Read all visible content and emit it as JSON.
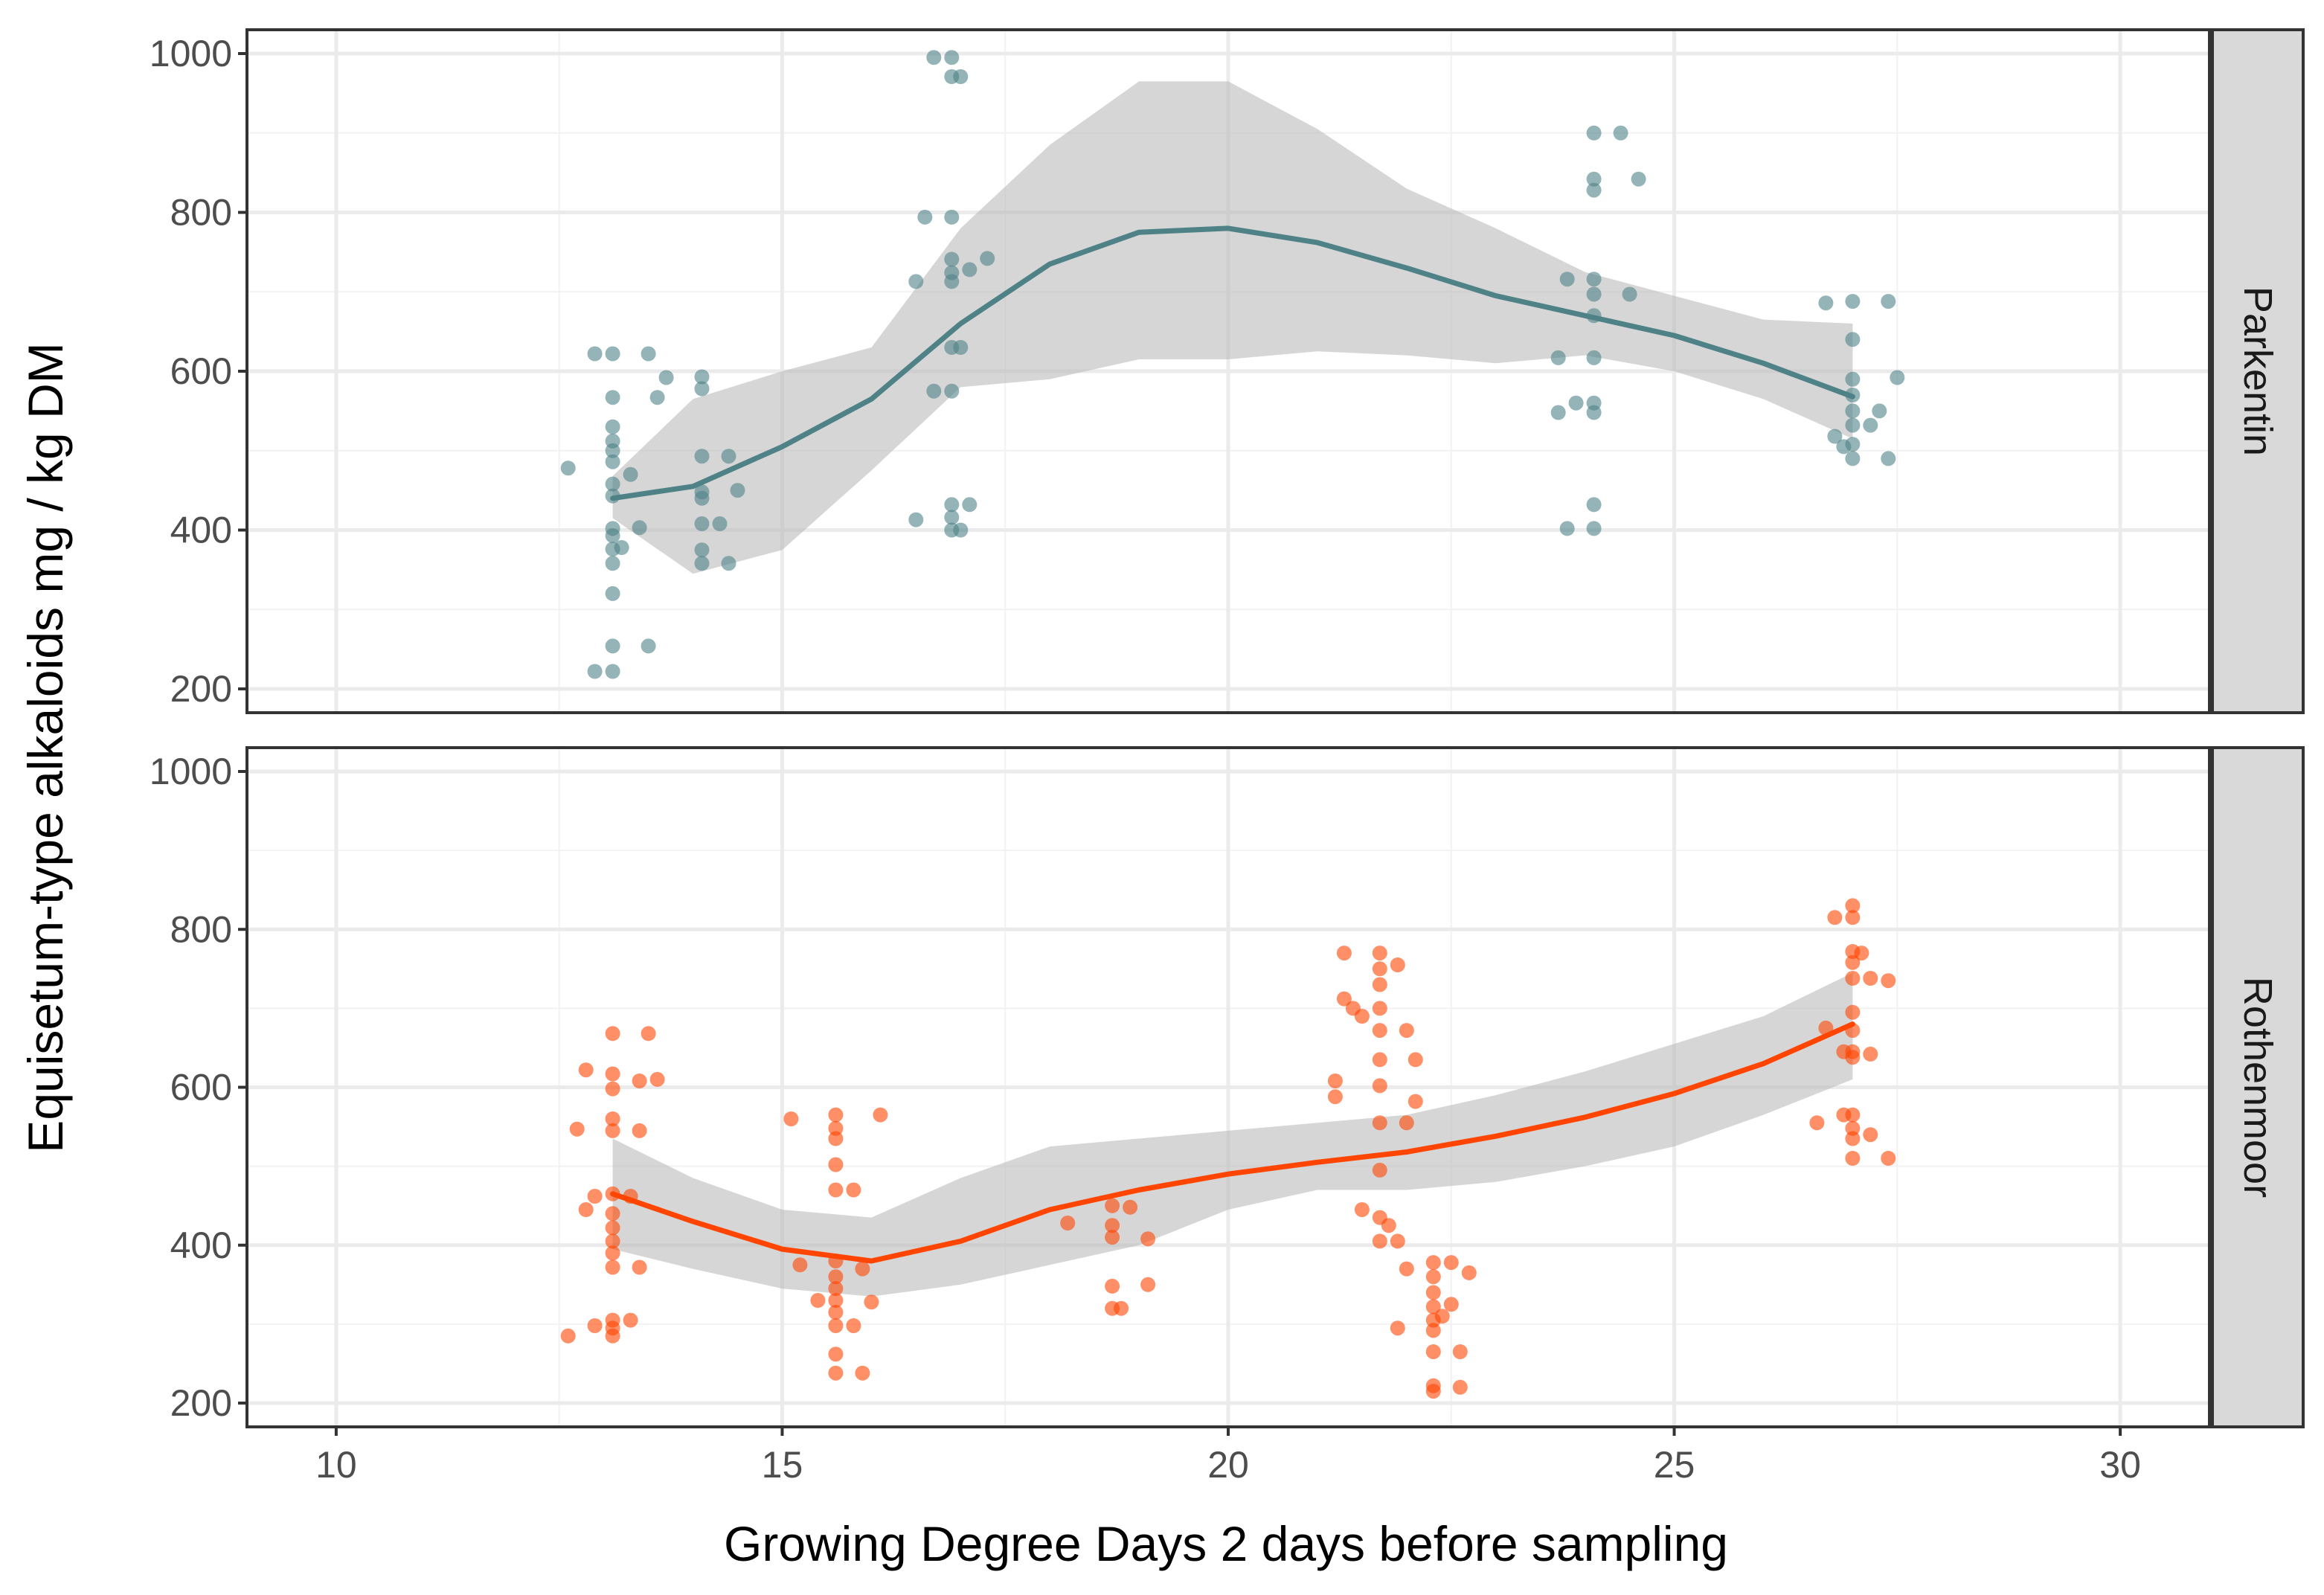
{
  "chart_data": {
    "type": "scatter",
    "xlabel": "Growing Degree Days 2 days before sampling",
    "ylabel": "Equisetum-type alkaloids mg / kg DM",
    "xlim": [
      9,
      31
    ],
    "ylim": [
      200,
      1000
    ],
    "x_ticks": [
      10,
      15,
      20,
      25,
      30
    ],
    "y_ticks": [
      200,
      400,
      600,
      800,
      1000
    ],
    "grid": true,
    "facets": [
      {
        "label": "Parkentin",
        "color": "#4e8287",
        "points": [
          {
            "x": 13.1,
            "y": 622
          },
          {
            "x": 13.1,
            "y": 567
          },
          {
            "x": 13.1,
            "y": 530
          },
          {
            "x": 13.1,
            "y": 512
          },
          {
            "x": 13.1,
            "y": 500
          },
          {
            "x": 13.1,
            "y": 486
          },
          {
            "x": 13.1,
            "y": 458
          },
          {
            "x": 13.1,
            "y": 443
          },
          {
            "x": 13.1,
            "y": 402
          },
          {
            "x": 13.1,
            "y": 393
          },
          {
            "x": 13.1,
            "y": 376
          },
          {
            "x": 13.1,
            "y": 358
          },
          {
            "x": 13.1,
            "y": 320
          },
          {
            "x": 13.1,
            "y": 254
          },
          {
            "x": 13.1,
            "y": 222
          },
          {
            "x": 12.9,
            "y": 622
          },
          {
            "x": 12.6,
            "y": 478
          },
          {
            "x": 12.9,
            "y": 222
          },
          {
            "x": 13.3,
            "y": 470
          },
          {
            "x": 13.4,
            "y": 403
          },
          {
            "x": 13.5,
            "y": 622
          },
          {
            "x": 13.5,
            "y": 254
          },
          {
            "x": 13.2,
            "y": 378
          },
          {
            "x": 13.6,
            "y": 567
          },
          {
            "x": 13.7,
            "y": 592
          },
          {
            "x": 14.1,
            "y": 593
          },
          {
            "x": 14.1,
            "y": 578
          },
          {
            "x": 14.1,
            "y": 493
          },
          {
            "x": 14.1,
            "y": 448
          },
          {
            "x": 14.1,
            "y": 440
          },
          {
            "x": 14.1,
            "y": 408
          },
          {
            "x": 14.1,
            "y": 375
          },
          {
            "x": 14.1,
            "y": 358
          },
          {
            "x": 14.4,
            "y": 493
          },
          {
            "x": 14.5,
            "y": 450
          },
          {
            "x": 14.3,
            "y": 408
          },
          {
            "x": 14.4,
            "y": 358
          },
          {
            "x": 16.9,
            "y": 995
          },
          {
            "x": 16.9,
            "y": 971
          },
          {
            "x": 16.7,
            "y": 995
          },
          {
            "x": 17.0,
            "y": 971
          },
          {
            "x": 16.9,
            "y": 794
          },
          {
            "x": 16.6,
            "y": 794
          },
          {
            "x": 16.9,
            "y": 741
          },
          {
            "x": 16.9,
            "y": 724
          },
          {
            "x": 16.9,
            "y": 713
          },
          {
            "x": 16.5,
            "y": 713
          },
          {
            "x": 17.1,
            "y": 728
          },
          {
            "x": 17.3,
            "y": 742
          },
          {
            "x": 16.9,
            "y": 630
          },
          {
            "x": 17.0,
            "y": 630
          },
          {
            "x": 16.9,
            "y": 575
          },
          {
            "x": 16.7,
            "y": 575
          },
          {
            "x": 16.9,
            "y": 432
          },
          {
            "x": 17.1,
            "y": 432
          },
          {
            "x": 16.9,
            "y": 416
          },
          {
            "x": 16.9,
            "y": 400
          },
          {
            "x": 16.5,
            "y": 413
          },
          {
            "x": 17.0,
            "y": 400
          },
          {
            "x": 24.1,
            "y": 900
          },
          {
            "x": 24.1,
            "y": 842
          },
          {
            "x": 24.1,
            "y": 828
          },
          {
            "x": 24.4,
            "y": 900
          },
          {
            "x": 24.6,
            "y": 842
          },
          {
            "x": 24.1,
            "y": 716
          },
          {
            "x": 24.1,
            "y": 697
          },
          {
            "x": 24.1,
            "y": 670
          },
          {
            "x": 23.8,
            "y": 716
          },
          {
            "x": 24.5,
            "y": 697
          },
          {
            "x": 24.1,
            "y": 617
          },
          {
            "x": 23.7,
            "y": 617
          },
          {
            "x": 24.1,
            "y": 560
          },
          {
            "x": 24.1,
            "y": 548
          },
          {
            "x": 23.9,
            "y": 560
          },
          {
            "x": 23.7,
            "y": 548
          },
          {
            "x": 24.1,
            "y": 432
          },
          {
            "x": 24.1,
            "y": 402
          },
          {
            "x": 23.8,
            "y": 402
          },
          {
            "x": 27.0,
            "y": 688
          },
          {
            "x": 27.0,
            "y": 640
          },
          {
            "x": 27.0,
            "y": 590
          },
          {
            "x": 27.0,
            "y": 570
          },
          {
            "x": 27.0,
            "y": 550
          },
          {
            "x": 27.0,
            "y": 532
          },
          {
            "x": 27.0,
            "y": 508
          },
          {
            "x": 27.0,
            "y": 490
          },
          {
            "x": 26.7,
            "y": 686
          },
          {
            "x": 27.4,
            "y": 688
          },
          {
            "x": 27.5,
            "y": 592
          },
          {
            "x": 27.3,
            "y": 550
          },
          {
            "x": 27.2,
            "y": 532
          },
          {
            "x": 26.8,
            "y": 518
          },
          {
            "x": 27.4,
            "y": 490
          },
          {
            "x": 26.9,
            "y": 505
          }
        ],
        "smooth": {
          "x": [
            13.1,
            14.0,
            15.0,
            16.0,
            17.0,
            18.0,
            19.0,
            20.0,
            21.0,
            22.0,
            23.0,
            24.0,
            25.0,
            26.0,
            27.0
          ],
          "y": [
            440,
            455,
            505,
            565,
            660,
            735,
            775,
            780,
            762,
            730,
            695,
            670,
            645,
            610,
            568
          ],
          "lower": [
            415,
            345,
            375,
            475,
            580,
            590,
            615,
            615,
            625,
            620,
            610,
            620,
            600,
            565,
            515
          ],
          "upper": [
            468,
            565,
            600,
            630,
            780,
            885,
            965,
            965,
            905,
            830,
            780,
            725,
            695,
            665,
            660
          ]
        }
      },
      {
        "label": "Rothenmoor",
        "color": "#ff4500",
        "points": [
          {
            "x": 13.1,
            "y": 668
          },
          {
            "x": 13.1,
            "y": 617
          },
          {
            "x": 13.1,
            "y": 598
          },
          {
            "x": 13.1,
            "y": 560
          },
          {
            "x": 13.1,
            "y": 545
          },
          {
            "x": 13.1,
            "y": 465
          },
          {
            "x": 13.1,
            "y": 440
          },
          {
            "x": 13.1,
            "y": 422
          },
          {
            "x": 13.1,
            "y": 405
          },
          {
            "x": 13.1,
            "y": 390
          },
          {
            "x": 13.1,
            "y": 372
          },
          {
            "x": 13.1,
            "y": 305
          },
          {
            "x": 13.1,
            "y": 295
          },
          {
            "x": 13.1,
            "y": 285
          },
          {
            "x": 12.8,
            "y": 622
          },
          {
            "x": 12.7,
            "y": 547
          },
          {
            "x": 12.8,
            "y": 445
          },
          {
            "x": 12.9,
            "y": 462
          },
          {
            "x": 12.6,
            "y": 285
          },
          {
            "x": 12.9,
            "y": 298
          },
          {
            "x": 13.3,
            "y": 305
          },
          {
            "x": 13.4,
            "y": 608
          },
          {
            "x": 13.5,
            "y": 668
          },
          {
            "x": 13.4,
            "y": 545
          },
          {
            "x": 13.4,
            "y": 372
          },
          {
            "x": 13.3,
            "y": 462
          },
          {
            "x": 13.6,
            "y": 610
          },
          {
            "x": 15.6,
            "y": 565
          },
          {
            "x": 15.6,
            "y": 548
          },
          {
            "x": 15.6,
            "y": 535
          },
          {
            "x": 15.6,
            "y": 502
          },
          {
            "x": 15.6,
            "y": 470
          },
          {
            "x": 15.6,
            "y": 380
          },
          {
            "x": 15.6,
            "y": 360
          },
          {
            "x": 15.6,
            "y": 345
          },
          {
            "x": 15.6,
            "y": 330
          },
          {
            "x": 15.6,
            "y": 315
          },
          {
            "x": 15.6,
            "y": 298
          },
          {
            "x": 15.6,
            "y": 262
          },
          {
            "x": 15.6,
            "y": 238
          },
          {
            "x": 15.1,
            "y": 560
          },
          {
            "x": 16.1,
            "y": 565
          },
          {
            "x": 15.8,
            "y": 470
          },
          {
            "x": 15.4,
            "y": 330
          },
          {
            "x": 15.9,
            "y": 370
          },
          {
            "x": 15.2,
            "y": 375
          },
          {
            "x": 15.8,
            "y": 298
          },
          {
            "x": 15.9,
            "y": 238
          },
          {
            "x": 16.0,
            "y": 328
          },
          {
            "x": 18.7,
            "y": 450
          },
          {
            "x": 18.7,
            "y": 425
          },
          {
            "x": 18.7,
            "y": 410
          },
          {
            "x": 18.7,
            "y": 348
          },
          {
            "x": 18.7,
            "y": 320
          },
          {
            "x": 18.2,
            "y": 428
          },
          {
            "x": 19.1,
            "y": 408
          },
          {
            "x": 18.9,
            "y": 448
          },
          {
            "x": 19.1,
            "y": 350
          },
          {
            "x": 18.8,
            "y": 320
          },
          {
            "x": 21.7,
            "y": 770
          },
          {
            "x": 21.7,
            "y": 750
          },
          {
            "x": 21.7,
            "y": 730
          },
          {
            "x": 21.7,
            "y": 700
          },
          {
            "x": 21.7,
            "y": 672
          },
          {
            "x": 21.7,
            "y": 635
          },
          {
            "x": 21.7,
            "y": 602
          },
          {
            "x": 21.7,
            "y": 555
          },
          {
            "x": 21.7,
            "y": 495
          },
          {
            "x": 21.7,
            "y": 435
          },
          {
            "x": 21.7,
            "y": 405
          },
          {
            "x": 21.3,
            "y": 770
          },
          {
            "x": 21.3,
            "y": 712
          },
          {
            "x": 21.4,
            "y": 700
          },
          {
            "x": 21.5,
            "y": 690
          },
          {
            "x": 21.9,
            "y": 755
          },
          {
            "x": 22.0,
            "y": 672
          },
          {
            "x": 22.1,
            "y": 635
          },
          {
            "x": 21.2,
            "y": 608
          },
          {
            "x": 21.2,
            "y": 588
          },
          {
            "x": 22.0,
            "y": 555
          },
          {
            "x": 22.1,
            "y": 582
          },
          {
            "x": 21.5,
            "y": 445
          },
          {
            "x": 21.8,
            "y": 425
          },
          {
            "x": 21.9,
            "y": 405
          },
          {
            "x": 22.0,
            "y": 370
          },
          {
            "x": 21.9,
            "y": 295
          },
          {
            "x": 22.3,
            "y": 378
          },
          {
            "x": 22.3,
            "y": 360
          },
          {
            "x": 22.3,
            "y": 340
          },
          {
            "x": 22.3,
            "y": 322
          },
          {
            "x": 22.3,
            "y": 305
          },
          {
            "x": 22.3,
            "y": 292
          },
          {
            "x": 22.3,
            "y": 265
          },
          {
            "x": 22.3,
            "y": 222
          },
          {
            "x": 22.3,
            "y": 215
          },
          {
            "x": 22.5,
            "y": 378
          },
          {
            "x": 22.7,
            "y": 365
          },
          {
            "x": 22.4,
            "y": 310
          },
          {
            "x": 22.5,
            "y": 325
          },
          {
            "x": 22.6,
            "y": 265
          },
          {
            "x": 22.6,
            "y": 220
          },
          {
            "x": 27.0,
            "y": 830
          },
          {
            "x": 27.0,
            "y": 815
          },
          {
            "x": 27.0,
            "y": 772
          },
          {
            "x": 27.0,
            "y": 758
          },
          {
            "x": 27.0,
            "y": 738
          },
          {
            "x": 27.0,
            "y": 695
          },
          {
            "x": 27.0,
            "y": 672
          },
          {
            "x": 27.0,
            "y": 645
          },
          {
            "x": 27.0,
            "y": 638
          },
          {
            "x": 27.0,
            "y": 565
          },
          {
            "x": 27.0,
            "y": 548
          },
          {
            "x": 27.0,
            "y": 535
          },
          {
            "x": 27.0,
            "y": 510
          },
          {
            "x": 26.8,
            "y": 815
          },
          {
            "x": 27.1,
            "y": 770
          },
          {
            "x": 27.2,
            "y": 738
          },
          {
            "x": 27.4,
            "y": 735
          },
          {
            "x": 26.7,
            "y": 675
          },
          {
            "x": 26.9,
            "y": 645
          },
          {
            "x": 27.2,
            "y": 642
          },
          {
            "x": 26.6,
            "y": 555
          },
          {
            "x": 26.9,
            "y": 565
          },
          {
            "x": 27.2,
            "y": 540
          },
          {
            "x": 27.4,
            "y": 510
          }
        ],
        "smooth": {
          "x": [
            13.1,
            14.0,
            15.0,
            16.0,
            17.0,
            18.0,
            19.0,
            20.0,
            21.0,
            22.0,
            23.0,
            24.0,
            25.0,
            26.0,
            27.0
          ],
          "y": [
            465,
            430,
            395,
            380,
            405,
            445,
            470,
            490,
            505,
            518,
            538,
            562,
            592,
            630,
            680
          ],
          "lower": [
            395,
            370,
            345,
            335,
            350,
            375,
            400,
            445,
            470,
            470,
            480,
            500,
            525,
            565,
            610
          ],
          "upper": [
            535,
            485,
            445,
            435,
            485,
            525,
            535,
            545,
            555,
            565,
            590,
            620,
            655,
            690,
            745
          ]
        }
      }
    ]
  }
}
